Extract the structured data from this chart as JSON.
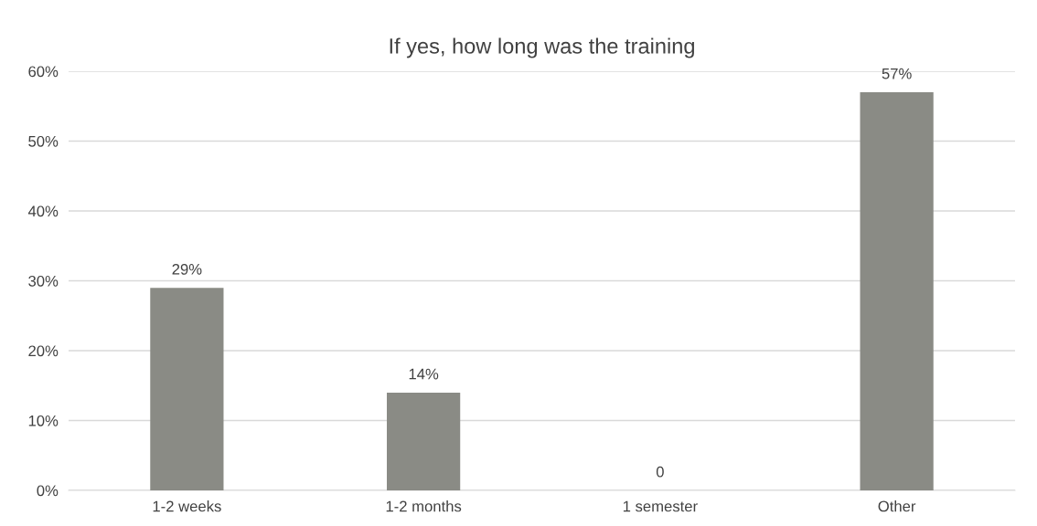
{
  "chart_data": {
    "type": "bar",
    "title": "If yes, how long was the training",
    "categories": [
      "1-2 weeks",
      "1-2 months",
      "1 semester",
      "Other"
    ],
    "values": [
      29,
      14,
      0,
      57
    ],
    "value_labels": [
      "29%",
      "14%",
      "0",
      "57%"
    ],
    "color": "#8a8b85",
    "ylim": [
      0,
      60
    ],
    "yticks": [
      {
        "value": 0,
        "label": "0%"
      },
      {
        "value": 10,
        "label": "10%"
      },
      {
        "value": 20,
        "label": "20%"
      },
      {
        "value": 30,
        "label": "30%"
      },
      {
        "value": 40,
        "label": "40%"
      },
      {
        "value": 50,
        "label": "50%"
      },
      {
        "value": 60,
        "label": "60%"
      }
    ],
    "grid": "y"
  }
}
